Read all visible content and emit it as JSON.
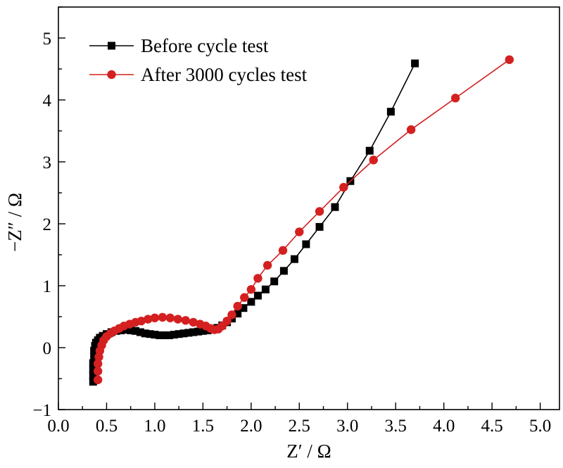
{
  "chart_data": {
    "type": "scatter",
    "title": "",
    "xlabel": "Z′ / Ω",
    "ylabel": "−Z″ / Ω",
    "xlim": [
      0,
      5.2
    ],
    "ylim": [
      -1,
      5.5
    ],
    "xticks": [
      0.0,
      0.5,
      1.0,
      1.5,
      2.0,
      2.5,
      3.0,
      3.5,
      4.0,
      4.5,
      5.0
    ],
    "xtick_labels": [
      "0.0",
      "0.5",
      "1.0",
      "1.5",
      "2.0",
      "2.5",
      "3.0",
      "3.5",
      "4.0",
      "4.5",
      "5.0"
    ],
    "yticks": [
      -1,
      0,
      1,
      2,
      3,
      4,
      5
    ],
    "ytick_labels": [
      "−1",
      "0",
      "1",
      "2",
      "3",
      "4",
      "5"
    ],
    "grid": false,
    "legend_position": "top-left",
    "series": [
      {
        "name": "Before cycle test",
        "color": "#000000",
        "marker": "square",
        "points": [
          [
            0.36,
            -0.55
          ],
          [
            0.36,
            -0.45
          ],
          [
            0.36,
            -0.35
          ],
          [
            0.36,
            -0.25
          ],
          [
            0.37,
            -0.15
          ],
          [
            0.37,
            -0.05
          ],
          [
            0.38,
            0.03
          ],
          [
            0.39,
            0.08
          ],
          [
            0.41,
            0.12
          ],
          [
            0.43,
            0.16
          ],
          [
            0.46,
            0.19
          ],
          [
            0.5,
            0.22
          ],
          [
            0.55,
            0.25
          ],
          [
            0.6,
            0.27
          ],
          [
            0.65,
            0.28
          ],
          [
            0.7,
            0.29
          ],
          [
            0.75,
            0.28
          ],
          [
            0.8,
            0.27
          ],
          [
            0.85,
            0.25
          ],
          [
            0.9,
            0.23
          ],
          [
            0.95,
            0.22
          ],
          [
            1.0,
            0.21
          ],
          [
            1.05,
            0.2
          ],
          [
            1.1,
            0.2
          ],
          [
            1.15,
            0.2
          ],
          [
            1.2,
            0.21
          ],
          [
            1.25,
            0.22
          ],
          [
            1.3,
            0.23
          ],
          [
            1.35,
            0.24
          ],
          [
            1.4,
            0.25
          ],
          [
            1.45,
            0.26
          ],
          [
            1.5,
            0.27
          ],
          [
            1.55,
            0.28
          ],
          [
            1.6,
            0.3
          ],
          [
            1.65,
            0.32
          ],
          [
            1.7,
            0.36
          ],
          [
            1.75,
            0.41
          ],
          [
            1.8,
            0.47
          ],
          [
            1.86,
            0.55
          ],
          [
            1.92,
            0.64
          ],
          [
            2.0,
            0.74
          ],
          [
            2.07,
            0.84
          ],
          [
            2.15,
            0.94
          ],
          [
            2.24,
            1.07
          ],
          [
            2.34,
            1.24
          ],
          [
            2.45,
            1.43
          ],
          [
            2.57,
            1.67
          ],
          [
            2.71,
            1.95
          ],
          [
            2.87,
            2.27
          ],
          [
            3.03,
            2.69
          ],
          [
            3.23,
            3.18
          ],
          [
            3.45,
            3.81
          ],
          [
            3.7,
            4.59
          ]
        ]
      },
      {
        "name": "After 3000 cycles test",
        "color": "#d42020",
        "marker": "circle",
        "points": [
          [
            0.41,
            -0.52
          ],
          [
            0.41,
            -0.38
          ],
          [
            0.41,
            -0.26
          ],
          [
            0.42,
            -0.15
          ],
          [
            0.43,
            -0.05
          ],
          [
            0.45,
            0.04
          ],
          [
            0.47,
            0.12
          ],
          [
            0.5,
            0.18
          ],
          [
            0.54,
            0.23
          ],
          [
            0.58,
            0.27
          ],
          [
            0.63,
            0.31
          ],
          [
            0.68,
            0.35
          ],
          [
            0.74,
            0.38
          ],
          [
            0.8,
            0.41
          ],
          [
            0.86,
            0.43
          ],
          [
            0.93,
            0.46
          ],
          [
            1.0,
            0.48
          ],
          [
            1.08,
            0.49
          ],
          [
            1.16,
            0.48
          ],
          [
            1.24,
            0.46
          ],
          [
            1.32,
            0.44
          ],
          [
            1.4,
            0.41
          ],
          [
            1.47,
            0.38
          ],
          [
            1.53,
            0.35
          ],
          [
            1.58,
            0.31
          ],
          [
            1.62,
            0.29
          ],
          [
            1.66,
            0.3
          ],
          [
            1.7,
            0.35
          ],
          [
            1.75,
            0.43
          ],
          [
            1.8,
            0.53
          ],
          [
            1.86,
            0.67
          ],
          [
            1.93,
            0.81
          ],
          [
            2.0,
            0.94
          ],
          [
            2.07,
            1.12
          ],
          [
            2.17,
            1.33
          ],
          [
            2.33,
            1.57
          ],
          [
            2.5,
            1.87
          ],
          [
            2.71,
            2.2
          ],
          [
            2.96,
            2.59
          ],
          [
            3.27,
            3.03
          ],
          [
            3.66,
            3.52
          ],
          [
            4.12,
            4.03
          ],
          [
            4.68,
            4.65
          ]
        ]
      }
    ]
  }
}
